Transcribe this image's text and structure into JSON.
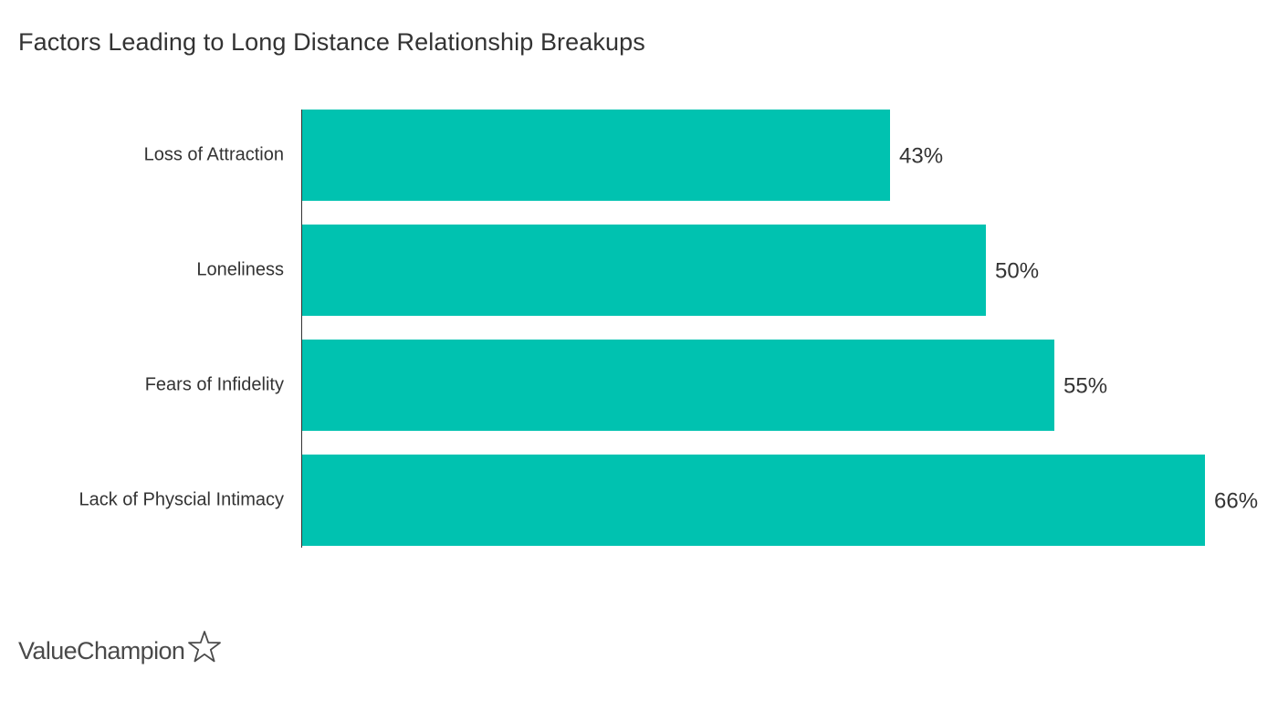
{
  "chart_data": {
    "type": "bar",
    "orientation": "horizontal",
    "title": "Factors Leading to Long Distance Relationship Breakups",
    "categories": [
      "Loss of Attraction",
      "Loneliness",
      "Fears of Infidelity",
      "Lack of Physcial Intimacy"
    ],
    "values": [
      43,
      50,
      55,
      66
    ],
    "value_labels": [
      "43%",
      "50%",
      "55%",
      "66%"
    ],
    "unit": "%",
    "xlim": [
      0,
      66
    ],
    "grid": false,
    "legend": "none",
    "bar_color": "#00c2b0",
    "axis_color": "#333333",
    "text_color": "#333333"
  },
  "branding": {
    "logo_text": "ValueChampion",
    "logo_icon": "star-outline-icon"
  }
}
